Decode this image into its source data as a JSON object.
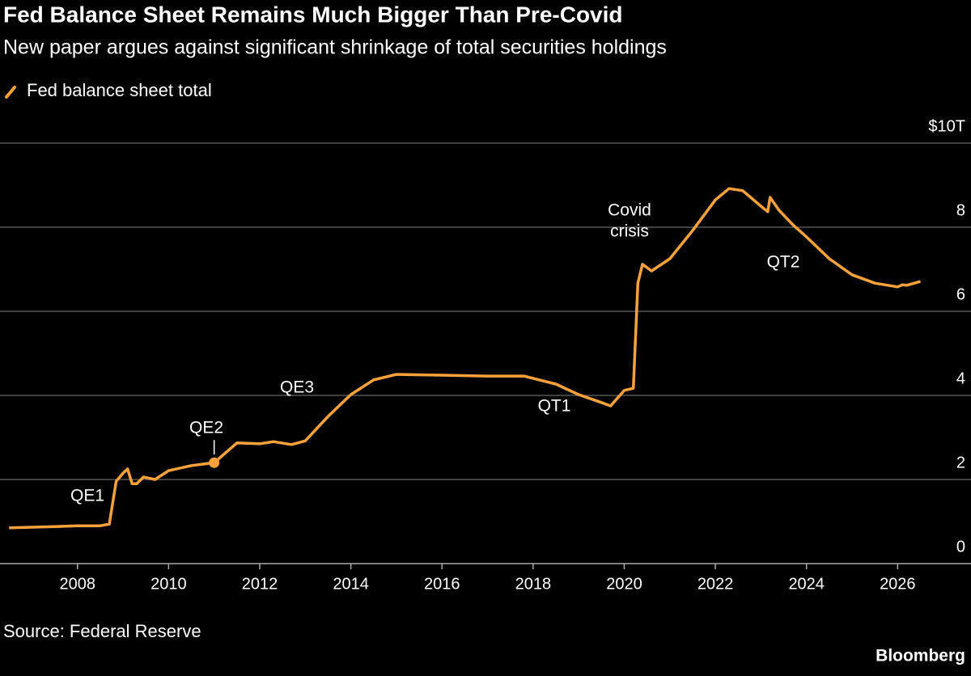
{
  "chart_data": {
    "type": "line",
    "title": "Fed Balance Sheet Remains Much Bigger Than Pre-Covid",
    "subtitle": "New paper argues against significant shrinkage of total securities holdings",
    "source": "Source: Federal Reserve",
    "brand": "Bloomberg",
    "xlim": [
      2006.3,
      2026.9
    ],
    "xticks": [
      2008,
      2010,
      2012,
      2014,
      2016,
      2018,
      2020,
      2022,
      2024,
      2026
    ],
    "ylim": [
      0,
      10
    ],
    "yticks": [
      0,
      2,
      4,
      6,
      8,
      {
        "value": 10,
        "label": "$10T"
      }
    ],
    "grid": true,
    "x": [
      2006.5,
      2007.5,
      2008.0,
      2008.5,
      2008.7,
      2008.75,
      2008.85,
      2009.0,
      2009.1,
      2009.2,
      2009.3,
      2009.45,
      2009.7,
      2010.0,
      2010.5,
      2011.0,
      2011.5,
      2012.0,
      2012.3,
      2012.7,
      2013.0,
      2013.5,
      2014.0,
      2014.5,
      2015.0,
      2016.0,
      2017.0,
      2017.8,
      2018.5,
      2019.0,
      2019.5,
      2019.7,
      2020.0,
      2020.2,
      2020.3,
      2020.4,
      2020.6,
      2021.0,
      2021.5,
      2022.0,
      2022.3,
      2022.6,
      2023.0,
      2023.15,
      2023.2,
      2023.4,
      2023.7,
      2024.0,
      2024.5,
      2025.0,
      2025.5,
      2026.0,
      2026.1,
      2026.2,
      2026.5
    ],
    "series": [
      {
        "name": "Fed balance sheet total",
        "color": "#f9a23c",
        "values": [
          0.85,
          0.88,
          0.9,
          0.9,
          0.94,
          1.29,
          1.96,
          2.15,
          2.25,
          1.9,
          1.9,
          2.06,
          2.0,
          2.21,
          2.33,
          2.4,
          2.87,
          2.85,
          2.9,
          2.83,
          2.92,
          3.5,
          4.02,
          4.37,
          4.5,
          4.48,
          4.46,
          4.46,
          4.27,
          4.02,
          3.83,
          3.75,
          4.12,
          4.17,
          6.67,
          7.12,
          6.96,
          7.25,
          7.92,
          8.65,
          8.92,
          8.87,
          8.5,
          8.37,
          8.71,
          8.4,
          8.06,
          7.77,
          7.25,
          6.87,
          6.67,
          6.58,
          6.63,
          6.62,
          6.71
        ]
      }
    ],
    "highlight_index": 15,
    "annotations": [
      {
        "lines": [
          "QE1"
        ]
      },
      {
        "lines": [
          "QE2"
        ]
      },
      {
        "lines": [
          "QE3"
        ]
      },
      {
        "lines": [
          "QT1"
        ]
      },
      {
        "lines": [
          "Covid",
          "crisis"
        ]
      },
      {
        "lines": [
          "QT2"
        ]
      }
    ]
  }
}
